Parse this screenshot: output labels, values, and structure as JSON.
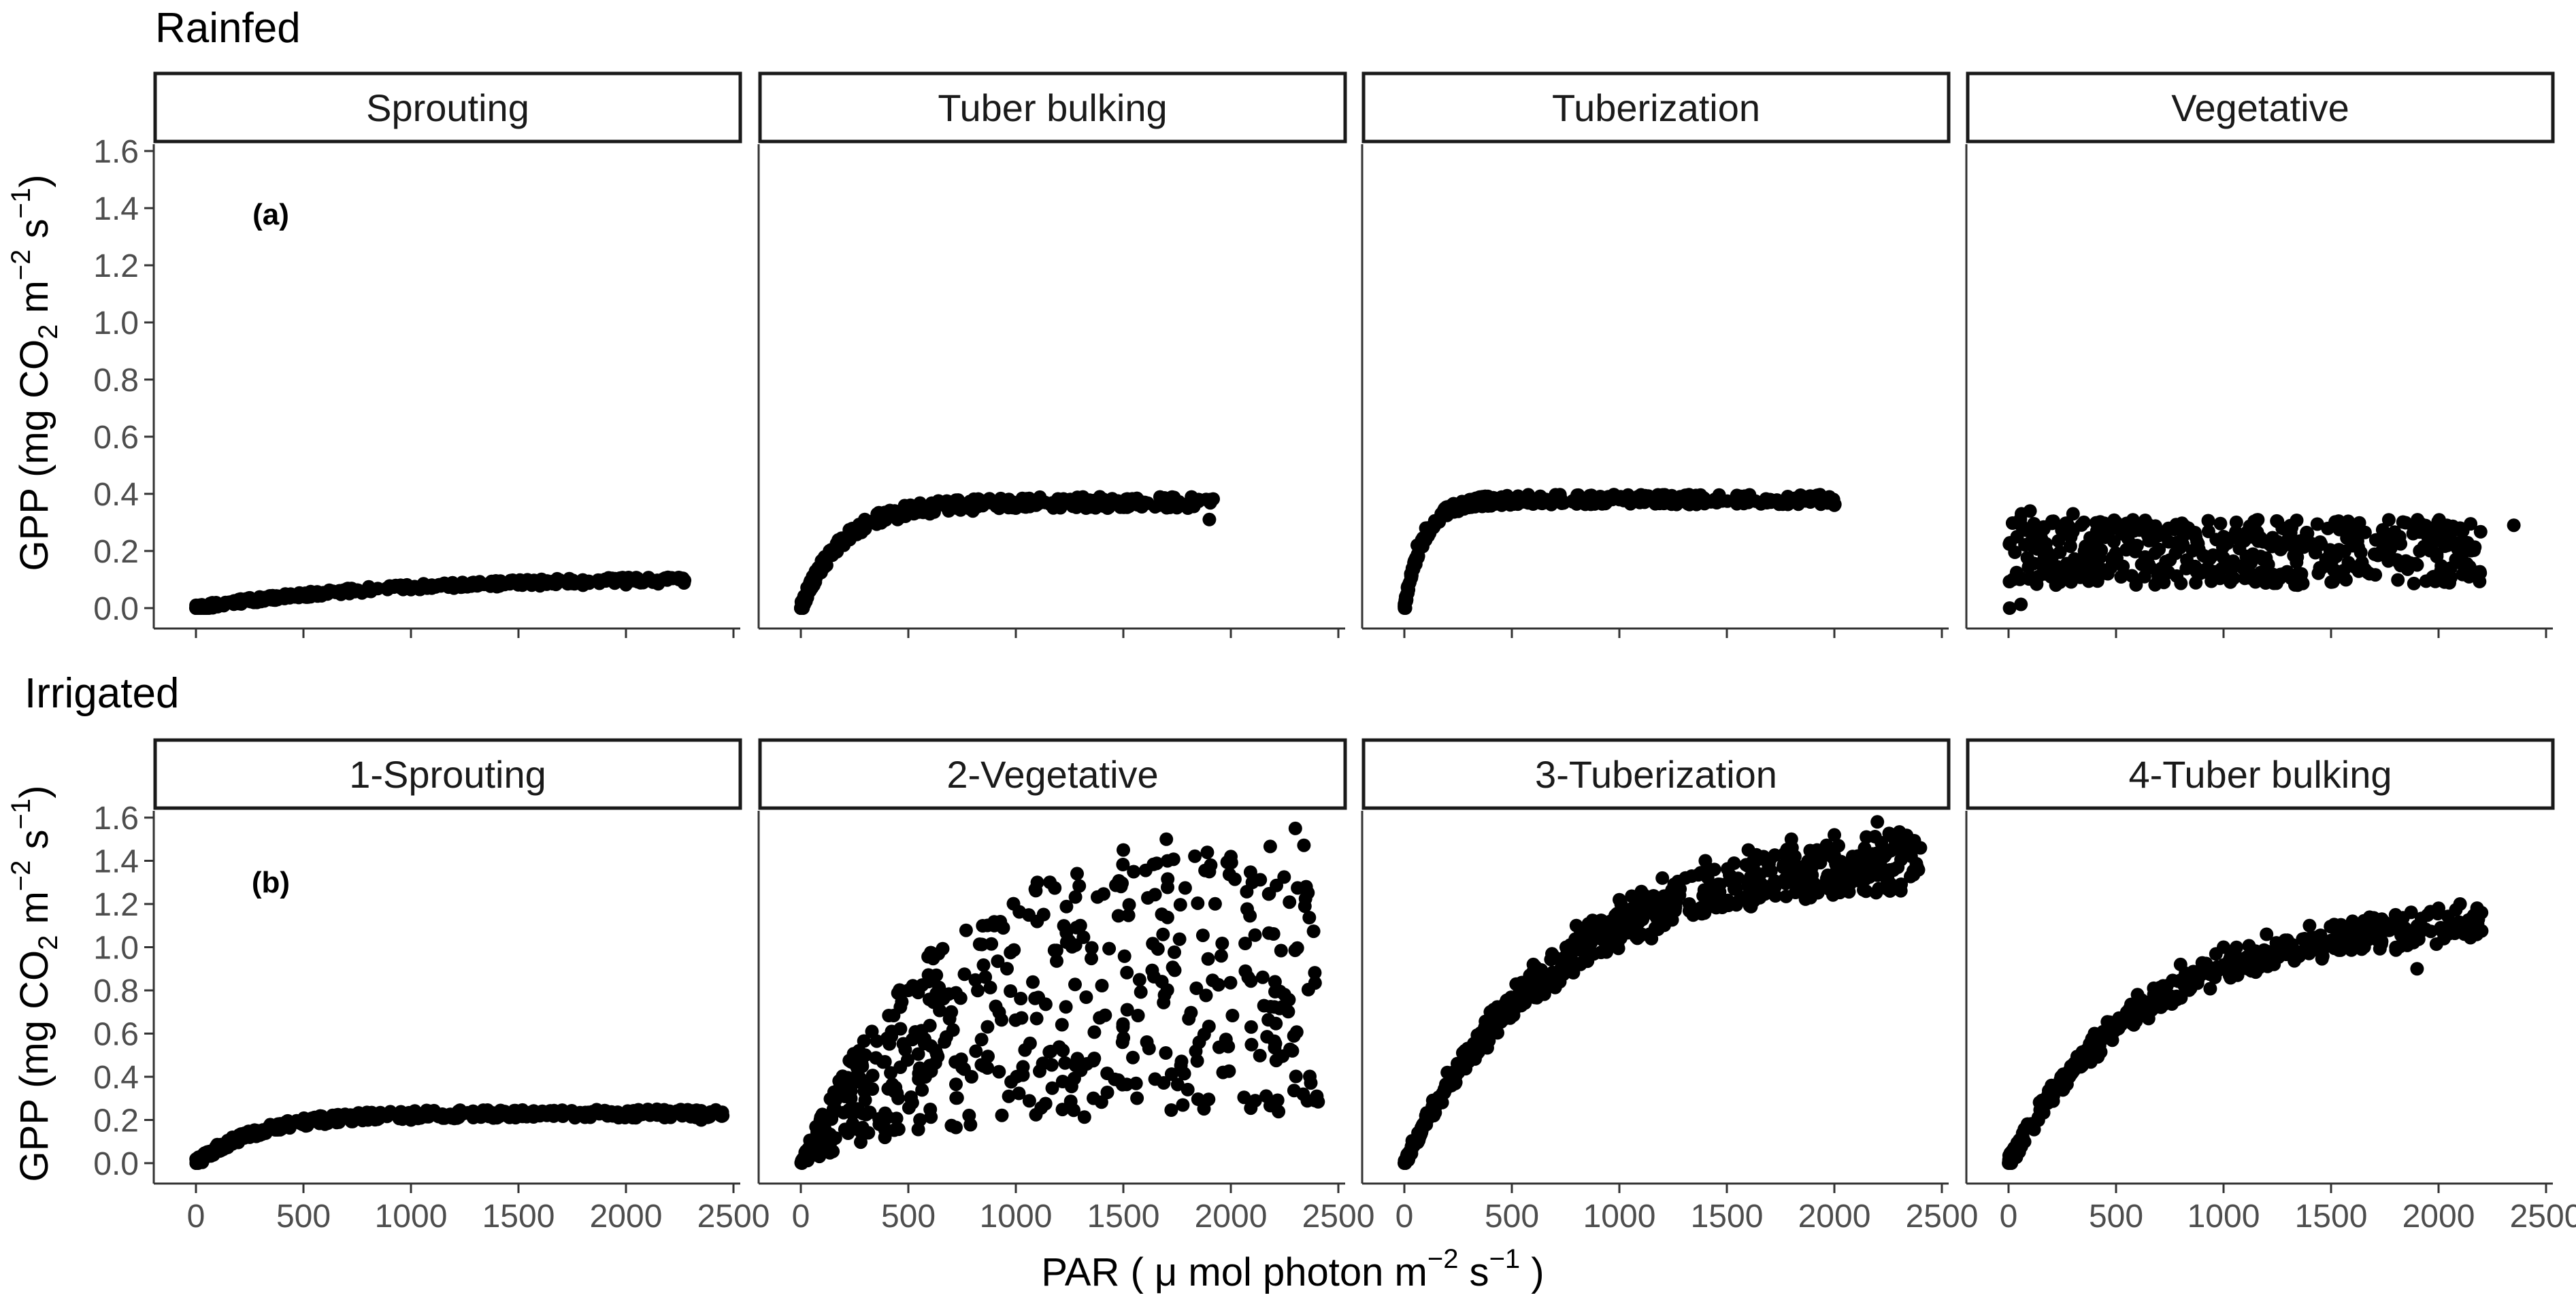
{
  "chart_data": [
    {
      "type": "scatter",
      "title": "Rainfed",
      "panel_label": "(a)",
      "ylabel": "GPP (mg CO2 m−2 s−1)",
      "ylabel_parts": {
        "lead": "GPP (mg CO",
        "sub": "2",
        "mid": " m",
        "sup1": "−2",
        "s": " s",
        "sup2": "−1",
        "close": ")"
      },
      "xlim": [
        0,
        2500
      ],
      "ylim": [
        0,
        1.65
      ],
      "yticks": [
        0.0,
        0.2,
        0.4,
        0.6,
        0.8,
        1.0,
        1.2,
        1.4,
        1.6
      ],
      "ytick_labels": [
        "0.0",
        "0.2",
        "0.4",
        "0.6",
        "0.8",
        "1.0",
        "1.2",
        "1.4",
        "1.6"
      ],
      "facets": [
        {
          "label": "Sprouting",
          "pattern": "curve",
          "points": [
            [
              20,
              0.0
            ],
            [
              80,
              0.01
            ],
            [
              150,
              0.02
            ],
            [
              250,
              0.03
            ],
            [
              350,
              0.04
            ],
            [
              500,
              0.05
            ],
            [
              650,
              0.055
            ],
            [
              800,
              0.06
            ],
            [
              1000,
              0.065
            ],
            [
              1200,
              0.07
            ],
            [
              1400,
              0.075
            ],
            [
              1600,
              0.078
            ],
            [
              1800,
              0.08
            ],
            [
              2000,
              0.082
            ],
            [
              2150,
              0.085
            ],
            [
              2270,
              0.088
            ]
          ],
          "gen": {
            "n": 340,
            "amax": 0.11,
            "k": 0.0011,
            "xmax": 2280,
            "noise": 0.02,
            "band": 0,
            "skew": 1.6
          }
        },
        {
          "label": "Tuber bulking",
          "pattern": "curve",
          "points": [
            [
              10,
              0.0
            ],
            [
              60,
              0.08
            ],
            [
              120,
              0.15
            ],
            [
              200,
              0.22
            ],
            [
              300,
              0.28
            ],
            [
              450,
              0.31
            ],
            [
              600,
              0.33
            ],
            [
              800,
              0.34
            ],
            [
              1000,
              0.35
            ],
            [
              1200,
              0.36
            ],
            [
              1400,
              0.36
            ],
            [
              1600,
              0.37
            ],
            [
              1800,
              0.35
            ],
            [
              1850,
              0.38
            ],
            [
              1900,
              0.31
            ]
          ],
          "gen": {
            "n": 320,
            "amax": 0.37,
            "k": 0.0052,
            "xmax": 1920,
            "noise": 0.04,
            "band": 0,
            "skew": 1.7
          }
        },
        {
          "label": "Tuberization",
          "pattern": "curve",
          "points": [
            [
              5,
              0.0
            ],
            [
              30,
              0.12
            ],
            [
              60,
              0.22
            ],
            [
              100,
              0.28
            ],
            [
              200,
              0.33
            ],
            [
              400,
              0.36
            ],
            [
              600,
              0.38
            ],
            [
              800,
              0.38
            ],
            [
              1000,
              0.38
            ],
            [
              1200,
              0.37
            ],
            [
              1400,
              0.37
            ],
            [
              1600,
              0.37
            ],
            [
              1800,
              0.37
            ],
            [
              1900,
              0.39
            ],
            [
              2000,
              0.36
            ]
          ],
          "gen": {
            "n": 340,
            "amax": 0.38,
            "k": 0.011,
            "xmax": 2010,
            "noise": 0.035,
            "band": 0,
            "skew": 1.7
          }
        },
        {
          "label": "Vegetative",
          "pattern": "scatter",
          "points": [
            [
              5,
              0.0
            ],
            [
              20,
              0.1
            ],
            [
              40,
              0.25
            ],
            [
              60,
              0.33
            ],
            [
              100,
              0.34
            ],
            [
              300,
              0.33
            ],
            [
              500,
              0.3
            ],
            [
              800,
              0.28
            ],
            [
              1000,
              0.25
            ],
            [
              1300,
              0.24
            ],
            [
              1600,
              0.27
            ],
            [
              1900,
              0.28
            ],
            [
              2100,
              0.28
            ],
            [
              2150,
              0.13
            ],
            [
              2350,
              0.29
            ]
          ],
          "gen": {
            "n": 460,
            "ymin": 0.02,
            "ymax": 0.33,
            "xmax": 2200,
            "skew": 1.0
          }
        }
      ]
    },
    {
      "type": "scatter",
      "title": "Irrigated",
      "panel_label": "(b)",
      "ylabel": "GPP (mg CO2 m−2 s−1)",
      "ylabel_parts": {
        "lead": "GPP (mg CO",
        "sub": "2",
        "mid": " m",
        "sup1": "−2",
        "s": " s",
        "sup2": "−1",
        "close": ")"
      },
      "xlabel": "PAR ( μ mol photon m−2 s−1 )",
      "xlabel_parts": {
        "lead": "PAR ( μ mol photon  m",
        "sup1": "−2",
        "s": " s",
        "sup2": "−1",
        "close": " )"
      },
      "xlim": [
        0,
        2500
      ],
      "xticks": [
        0,
        500,
        1000,
        1500,
        2000,
        2500
      ],
      "xtick_labels": [
        "0",
        "500",
        "1000",
        "1500",
        "2000",
        "2500"
      ],
      "ylim": [
        0,
        1.65
      ],
      "yticks": [
        0.0,
        0.2,
        0.4,
        0.6,
        0.8,
        1.0,
        1.2,
        1.4,
        1.6
      ],
      "ytick_labels": [
        "0.0",
        "0.2",
        "0.4",
        "0.6",
        "0.8",
        "1.0",
        "1.2",
        "1.4",
        "1.6"
      ],
      "facets": [
        {
          "label": "1-Sprouting",
          "pattern": "curve",
          "points": [
            [
              10,
              0.0
            ],
            [
              100,
              0.06
            ],
            [
              250,
              0.12
            ],
            [
              400,
              0.16
            ],
            [
              600,
              0.18
            ],
            [
              800,
              0.2
            ],
            [
              1000,
              0.2
            ],
            [
              1200,
              0.21
            ],
            [
              1400,
              0.21
            ],
            [
              1600,
              0.22
            ],
            [
              1800,
              0.23
            ],
            [
              2000,
              0.23
            ],
            [
              2200,
              0.22
            ],
            [
              2350,
              0.2
            ],
            [
              2450,
              0.22
            ]
          ],
          "gen": {
            "n": 380,
            "amax": 0.23,
            "k": 0.0035,
            "xmax": 2450,
            "noise": 0.04,
            "band": 0,
            "skew": 1.4
          }
        },
        {
          "label": "2-Vegetative",
          "pattern": "fan",
          "points": [
            [
              5,
              0.0
            ],
            [
              100,
              0.2
            ],
            [
              300,
              0.5
            ],
            [
              500,
              0.8
            ],
            [
              700,
              0.7
            ],
            [
              900,
              1.1
            ],
            [
              1100,
              1.3
            ],
            [
              1300,
              1.1
            ],
            [
              1500,
              1.45
            ],
            [
              1700,
              1.5
            ],
            [
              1900,
              1.35
            ],
            [
              2100,
              1.3
            ],
            [
              2300,
              1.55
            ],
            [
              2350,
              1.28
            ],
            [
              2400,
              0.31
            ]
          ],
          "gen": {
            "n": 520,
            "amax": 1.52,
            "k": 0.0017,
            "xmax": 2420,
            "skew": 1.3
          }
        },
        {
          "label": "3-Tuberization",
          "pattern": "curve",
          "points": [
            [
              5,
              0.0
            ],
            [
              100,
              0.22
            ],
            [
              200,
              0.42
            ],
            [
              400,
              0.7
            ],
            [
              600,
              0.92
            ],
            [
              800,
              1.1
            ],
            [
              1000,
              1.22
            ],
            [
              1200,
              1.32
            ],
            [
              1400,
              1.4
            ],
            [
              1600,
              1.45
            ],
            [
              1800,
              1.5
            ],
            [
              2000,
              1.52
            ],
            [
              2200,
              1.58
            ],
            [
              2300,
              1.46
            ],
            [
              2400,
              1.46
            ]
          ],
          "gen": {
            "n": 620,
            "amax": 1.58,
            "k": 0.0014,
            "xmax": 2400,
            "noise": 0.05,
            "band": 0.16,
            "skew": 1.2
          }
        },
        {
          "label": "4-Tuber bulking",
          "pattern": "curve",
          "points": [
            [
              5,
              0.0
            ],
            [
              100,
              0.18
            ],
            [
              200,
              0.36
            ],
            [
              400,
              0.6
            ],
            [
              600,
              0.78
            ],
            [
              800,
              0.92
            ],
            [
              1000,
              1.0
            ],
            [
              1200,
              1.06
            ],
            [
              1400,
              1.1
            ],
            [
              1600,
              1.12
            ],
            [
              1800,
              1.15
            ],
            [
              1900,
              0.9
            ],
            [
              2000,
              1.18
            ],
            [
              2100,
              1.2
            ],
            [
              2200,
              1.16
            ]
          ],
          "gen": {
            "n": 420,
            "amax": 1.2,
            "k": 0.0016,
            "xmax": 2210,
            "noise": 0.07,
            "band": 0.1,
            "skew": 1.3
          }
        }
      ]
    }
  ]
}
